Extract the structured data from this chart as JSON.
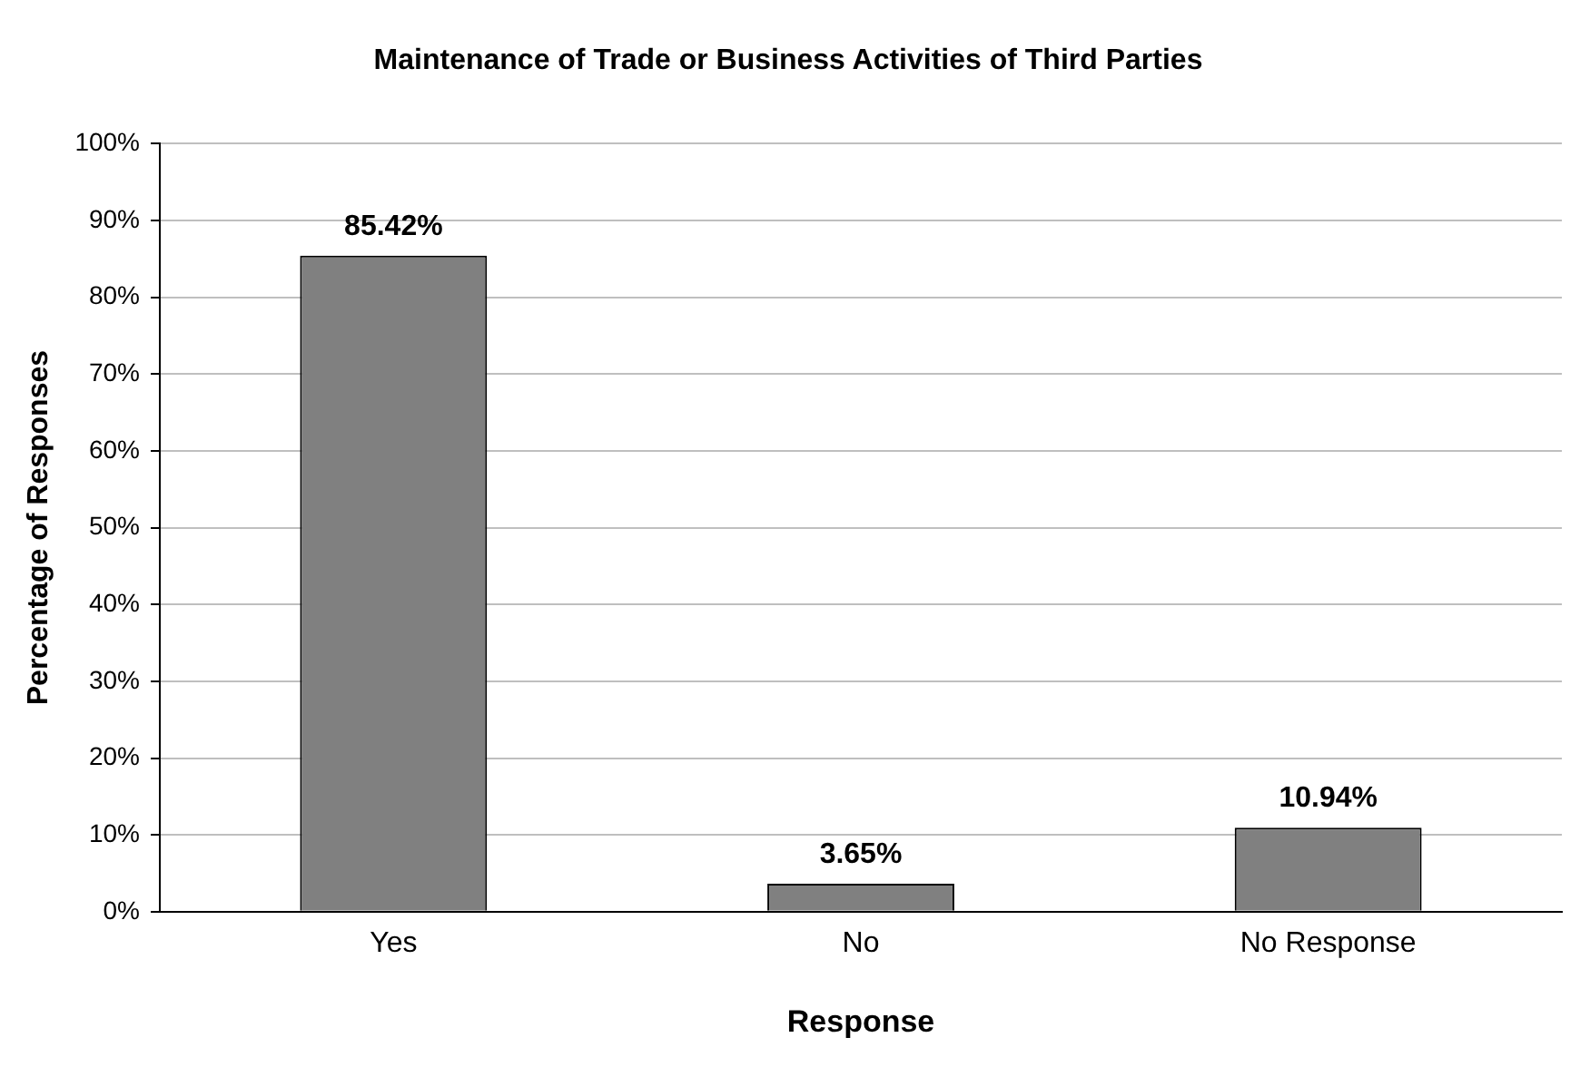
{
  "chart_data": {
    "type": "bar",
    "title": "Maintenance of Trade or Business Activities of Third Parties",
    "xlabel": "Response",
    "ylabel": "Percentage of Responses",
    "categories": [
      "Yes",
      "No",
      "No Response"
    ],
    "values": [
      85.42,
      3.65,
      10.94
    ],
    "value_labels": [
      "85.42%",
      "3.65%",
      "10.94%"
    ],
    "color": "#808080",
    "ylim": [
      0,
      100
    ],
    "yticks": [
      {
        "value": 0,
        "label": "0%"
      },
      {
        "value": 10,
        "label": "10%"
      },
      {
        "value": 20,
        "label": "20%"
      },
      {
        "value": 30,
        "label": "30%"
      },
      {
        "value": 40,
        "label": "40%"
      },
      {
        "value": 50,
        "label": "50%"
      },
      {
        "value": 60,
        "label": "60%"
      },
      {
        "value": 70,
        "label": "70%"
      },
      {
        "value": 80,
        "label": "80%"
      },
      {
        "value": 90,
        "label": "90%"
      },
      {
        "value": 100,
        "label": "100%"
      }
    ],
    "grid": "y",
    "legend": false
  }
}
